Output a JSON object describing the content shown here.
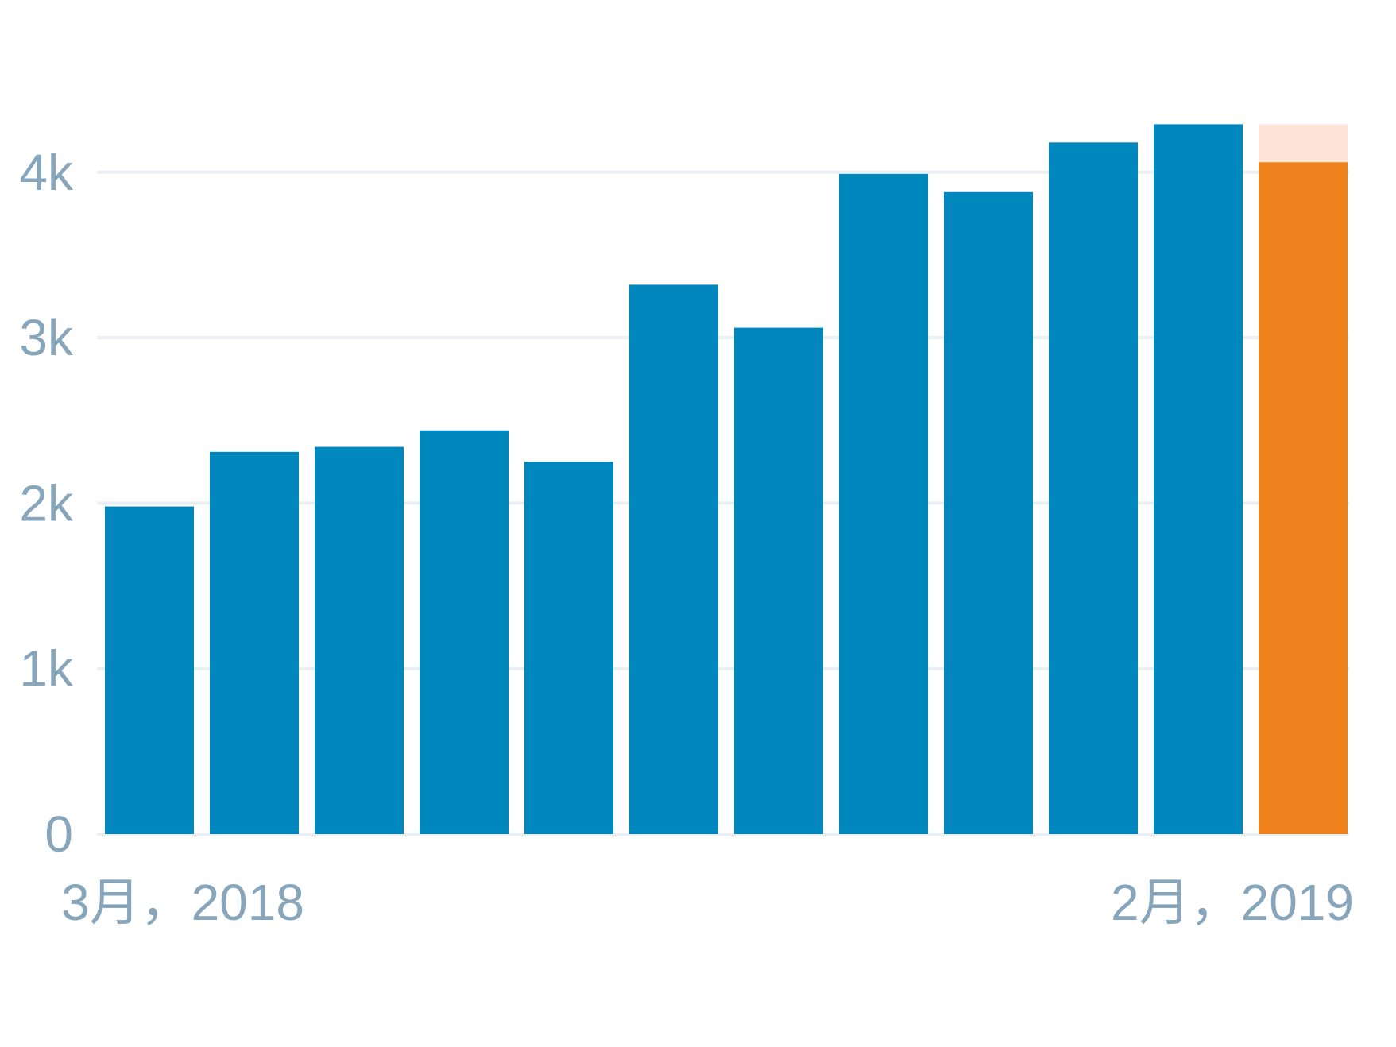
{
  "chart_data": {
    "type": "bar",
    "categories": [
      "3月，2018",
      "",
      "",
      "",
      "",
      "",
      "",
      "",
      "",
      "",
      "",
      "2月，2019"
    ],
    "series": [
      {
        "values": [
          1980,
          2310,
          2340,
          2440,
          2250,
          3320,
          3060,
          3990,
          3880,
          4180,
          4290,
          4060
        ],
        "projected_values": [
          null,
          null,
          null,
          null,
          null,
          null,
          null,
          null,
          null,
          null,
          null,
          4290
        ]
      }
    ],
    "x_tick_labels": [
      "3月，2018",
      "2月，2019"
    ],
    "y_ticks": [
      0,
      1000,
      2000,
      3000,
      4000
    ],
    "y_tick_labels": [
      "0",
      "1k",
      "2k",
      "3k",
      "4k"
    ],
    "ylim": [
      0,
      4290
    ],
    "title": "",
    "xlabel": "",
    "ylabel": "",
    "grid": true,
    "colors": {
      "bar": "#0087be",
      "current_bar": "#f0821e",
      "projected": "#fde4d6",
      "grid": "#e9eff3",
      "axis_text": "#87a6bc"
    }
  }
}
